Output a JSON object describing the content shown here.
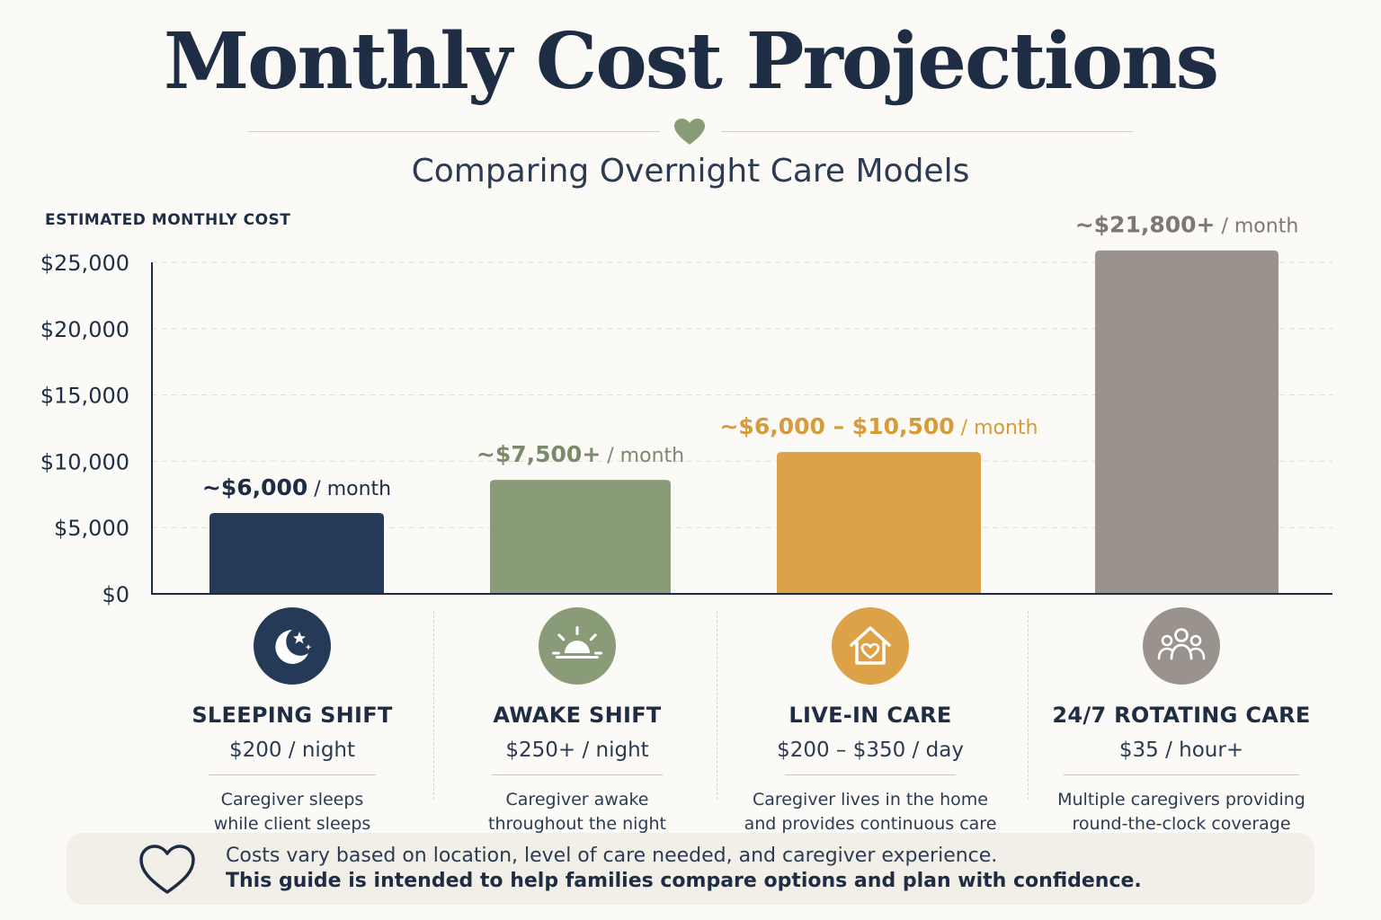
{
  "header": {
    "title": "Monthly Cost Projections",
    "subtitle": "Comparing Overnight Care Models"
  },
  "chart_data": {
    "type": "bar",
    "ylabel": "ESTIMATED MONTHLY COST",
    "ylim": [
      0,
      25000
    ],
    "yticks": [
      0,
      5000,
      10000,
      15000,
      20000,
      25000
    ],
    "ytick_labels": [
      "$0",
      "$5,000",
      "$10,000",
      "$15,000",
      "$20,000",
      "$25,000"
    ],
    "grid": true,
    "categories": [
      "SLEEPING SHIFT",
      "AWAKE SHIFT",
      "LIVE-IN CARE",
      "24/7 ROTATING CARE"
    ],
    "values": [
      6100,
      8600,
      10700,
      25900
    ],
    "colors": [
      "#253a56",
      "#8a9b78",
      "#dda148",
      "#9a938d"
    ],
    "data_labels": [
      {
        "main": "~$6,000",
        "suffix": " / month",
        "color": "#1f2d44"
      },
      {
        "main": "~$7,500+",
        "suffix": " / month",
        "color": "#7b8a68"
      },
      {
        "main": "~$6,000 – $10,500",
        "suffix": " / month",
        "color": "#d69b3a"
      },
      {
        "main": "~$21,800+",
        "suffix": " / month",
        "color": "#7e7872"
      }
    ]
  },
  "categories": [
    {
      "name": "SLEEPING SHIFT",
      "price": "$200 / night",
      "desc1": "Caregiver sleeps",
      "desc2": "while client sleeps",
      "icon": "moon-stars-icon",
      "color": "#253a56"
    },
    {
      "name": "AWAKE SHIFT",
      "price": "$250+ / night",
      "desc1": "Caregiver awake",
      "desc2": "throughout the night",
      "icon": "sunrise-icon",
      "color": "#8a9b78"
    },
    {
      "name": "LIVE-IN CARE",
      "price": "$200 – $350 / day",
      "desc1": "Caregiver lives in the home",
      "desc2": "and provides continuous care",
      "icon": "house-heart-icon",
      "color": "#dda148"
    },
    {
      "name": "24/7 ROTATING CARE",
      "price": "$35 / hour+",
      "desc1": "Multiple caregivers providing",
      "desc2": "round-the-clock coverage",
      "icon": "people-group-icon",
      "color": "#9a938d"
    }
  ],
  "footer": {
    "line1": "Costs vary based on location, level of care needed, and caregiver experience.",
    "line2": "This guide is intended to help families compare options and plan with confidence."
  }
}
